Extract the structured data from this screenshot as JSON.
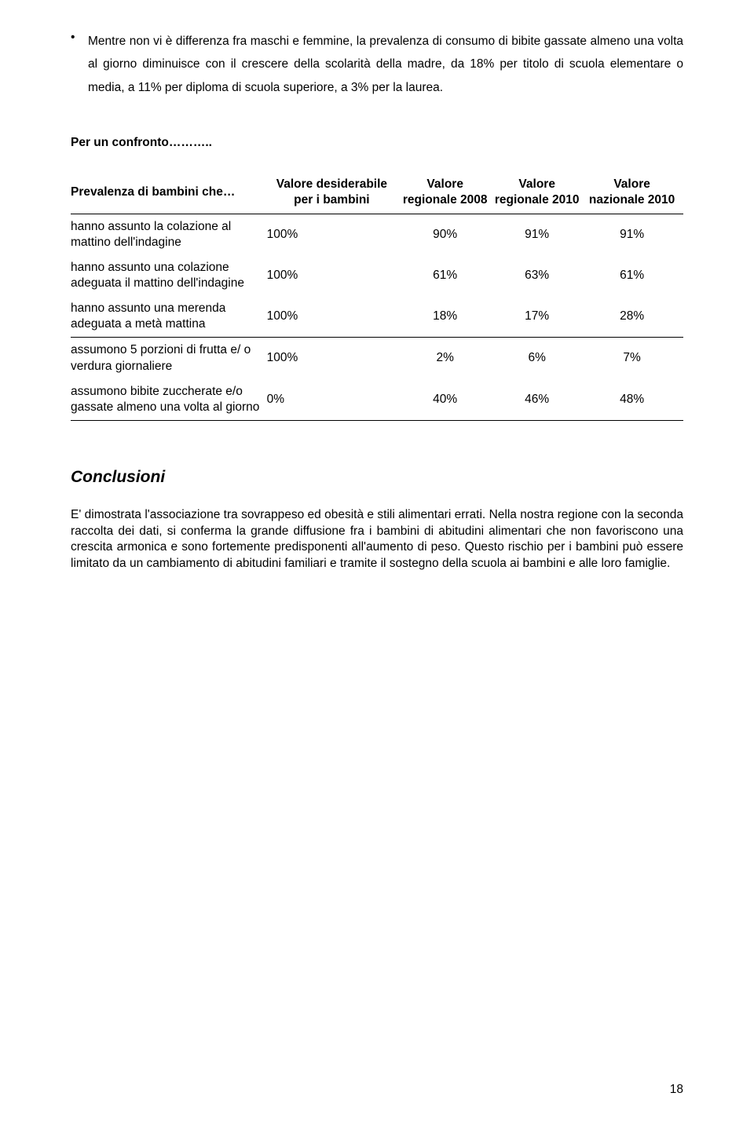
{
  "bullet": {
    "marker": "•",
    "text": "Mentre non vi è differenza fra maschi e femmine, la prevalenza di consumo di bibite gassate almeno una volta al giorno diminuisce con il crescere della scolarità della madre, da 18% per titolo di scuola elementare o media, a 11% per diploma di scuola superiore, a 3% per la laurea."
  },
  "confronto_heading": "Per un confronto………..",
  "table": {
    "headers": {
      "col0": "Prevalenza di bambini che…",
      "col1": "Valore desiderabile per i bambini",
      "col2": "Valore regionale 2008",
      "col3": "Valore regionale 2010",
      "col4": "Valore nazionale 2010"
    },
    "rows": [
      {
        "label": "hanno assunto la colazione al mattino dell'indagine",
        "desider": "100%",
        "v1": "90%",
        "v2": "91%",
        "v3": "91%"
      },
      {
        "label": "hanno assunto una colazione adeguata il mattino dell'indagine",
        "desider": "100%",
        "v1": "61%",
        "v2": "63%",
        "v3": "61%"
      },
      {
        "label": "hanno assunto una merenda adeguata a metà mattina",
        "desider": "100%",
        "v1": "18%",
        "v2": "17%",
        "v3": "28%"
      },
      {
        "label": "assumono 5 porzioni di frutta e/ o verdura giornaliere",
        "desider": "100%",
        "v1": "2%",
        "v2": "6%",
        "v3": "7%"
      },
      {
        "label": "assumono bibite zuccherate e/o gassate almeno una volta al giorno",
        "desider": "0%",
        "v1": "40%",
        "v2": "46%",
        "v3": "48%"
      }
    ]
  },
  "conclusioni": {
    "heading": "Conclusioni",
    "text": "E' dimostrata l'associazione tra sovrappeso ed obesità e stili alimentari errati. Nella nostra regione con la seconda raccolta dei dati, si conferma la grande diffusione fra i bambini di abitudini alimentari che non favoriscono una crescita armonica e sono fortemente predisponenti all'aumento di peso. Questo rischio per i bambini può essere limitato da un cambiamento di abitudini familiari e tramite il sostegno della scuola ai bambini e alle loro famiglie."
  },
  "page_number": "18"
}
